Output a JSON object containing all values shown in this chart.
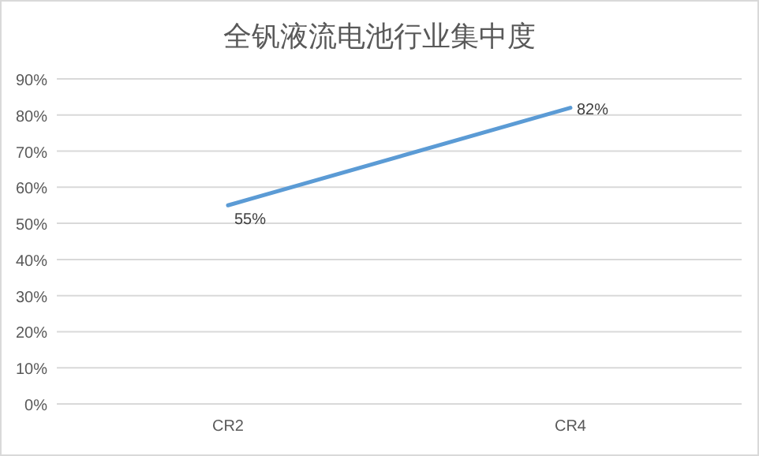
{
  "chart_data": {
    "type": "line",
    "title": "全钒液流电池行业集中度",
    "categories": [
      "CR2",
      "CR4"
    ],
    "series": [
      {
        "color": "#5b9bd5",
        "values": [
          55,
          82
        ],
        "value_labels": [
          "55%",
          "82%"
        ]
      }
    ],
    "ylim": [
      0,
      90
    ],
    "yticks": [
      {
        "value": 0,
        "label": "0%"
      },
      {
        "value": 10,
        "label": "10%"
      },
      {
        "value": 20,
        "label": "20%"
      },
      {
        "value": 30,
        "label": "30%"
      },
      {
        "value": 40,
        "label": "40%"
      },
      {
        "value": 50,
        "label": "50%"
      },
      {
        "value": 60,
        "label": "60%"
      },
      {
        "value": 70,
        "label": "70%"
      },
      {
        "value": 80,
        "label": "80%"
      },
      {
        "value": 90,
        "label": "90%"
      }
    ],
    "grid": "y",
    "marker": "none",
    "line_style": "solid"
  }
}
